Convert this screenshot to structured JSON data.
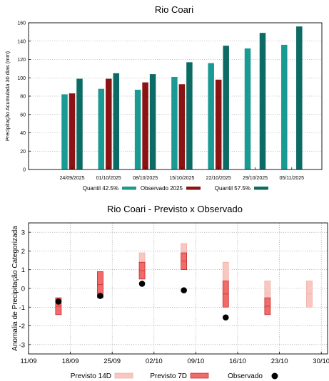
{
  "chart_data": [
    {
      "type": "bar",
      "title": "Rio Coari",
      "xlabel": "",
      "ylabel": "Precipitação Acumulada 30 dias (mm)",
      "ylim": [
        0,
        160
      ],
      "yticks": [
        0,
        20,
        40,
        60,
        80,
        100,
        120,
        140,
        160
      ],
      "categories": [
        "24/09/2025",
        "01/10/2025",
        "08/10/2025",
        "15/10/2025",
        "22/10/2025",
        "29/10/2025",
        "05/11/2025"
      ],
      "grid": true,
      "legend_position": "bottom",
      "series": [
        {
          "name": "Quantil 42.5%",
          "color": "#1a9a92",
          "values": [
            82,
            88,
            87,
            101,
            116,
            132,
            136
          ]
        },
        {
          "name": "Observado 2025",
          "color": "#8b1313",
          "values": [
            83,
            99,
            95,
            93,
            98,
            null,
            null
          ]
        },
        {
          "name": "Quantil 57.5%",
          "color": "#0d6b65",
          "values": [
            99,
            105,
            104,
            117,
            135,
            149,
            156
          ]
        }
      ]
    },
    {
      "type": "range",
      "title": "Rio Coari - Previsto x Observado",
      "xlabel": "",
      "ylabel": "Anomalia de Precipitação Categorizada",
      "ylim": [
        -3.5,
        3.5
      ],
      "yticks": [
        -3,
        -2,
        -1,
        0,
        1,
        2,
        3
      ],
      "xticks": [
        "11/09",
        "18/09",
        "25/09",
        "02/10",
        "09/10",
        "16/10",
        "23/10",
        "30/10"
      ],
      "grid": true,
      "legend_position": "bottom",
      "series": [
        {
          "name": "Previsto 14D",
          "color": "#f8c8c0",
          "points": [
            {
              "x": "16/09",
              "low": -1.4,
              "high": -0.5
            },
            {
              "x": "23/09",
              "low": -0.5,
              "high": 0.9
            },
            {
              "x": "30/09",
              "low": 0.5,
              "high": 1.9
            },
            {
              "x": "07/10",
              "low": 1.5,
              "high": 2.4
            },
            {
              "x": "14/10",
              "low": -0.9,
              "high": 1.4
            },
            {
              "x": "21/10",
              "low": -0.9,
              "high": 0.4
            },
            {
              "x": "28/10",
              "low": -1.0,
              "high": 0.4
            }
          ]
        },
        {
          "name": "Previsto 7D",
          "color": "#f26b6b",
          "points": [
            {
              "x": "16/09",
              "low": -1.4,
              "high": -0.5
            },
            {
              "x": "23/09",
              "low": -0.5,
              "high": 0.9
            },
            {
              "x": "30/09",
              "low": 0.5,
              "high": 1.4
            },
            {
              "x": "07/10",
              "low": 1.0,
              "high": 1.9
            },
            {
              "x": "14/10",
              "low": -1.0,
              "high": 0.4
            },
            {
              "x": "21/10",
              "low": -1.4,
              "high": -0.5
            }
          ]
        },
        {
          "name": "Observado",
          "color": "#000000",
          "points": [
            {
              "x": "16/09",
              "y": -0.7
            },
            {
              "x": "23/09",
              "y": -0.4
            },
            {
              "x": "30/09",
              "y": 0.25
            },
            {
              "x": "07/10",
              "y": -0.1
            },
            {
              "x": "14/10",
              "y": -1.55
            }
          ]
        }
      ]
    }
  ]
}
